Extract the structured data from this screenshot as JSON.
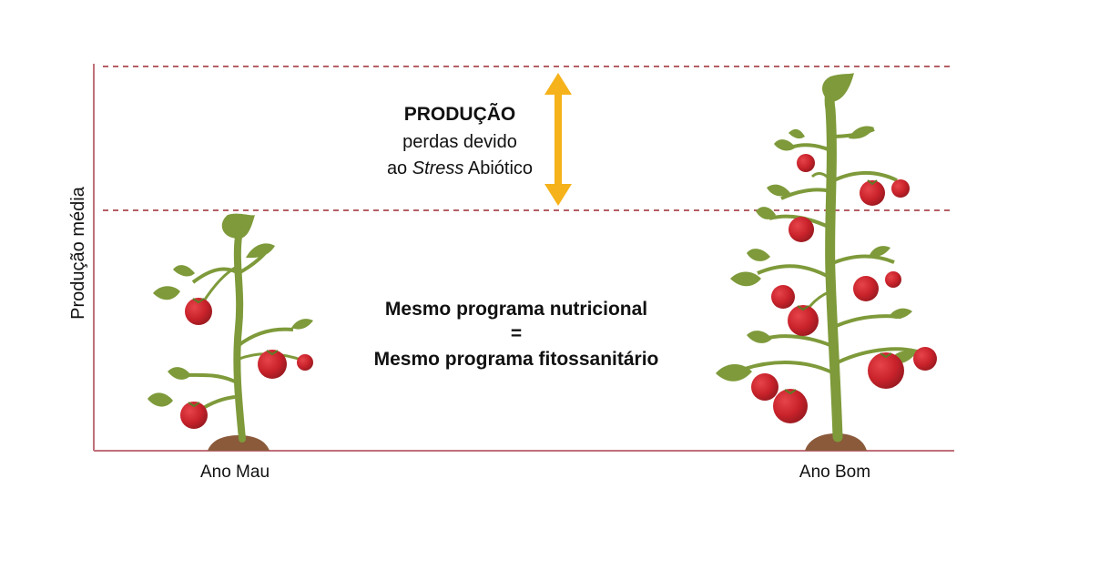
{
  "axis": {
    "ylabel": "Produção média",
    "categories": [
      "Ano Mau",
      "Ano Bom"
    ]
  },
  "gap_annotation": {
    "title": "PRODUÇÃO",
    "line2": "perdas devido",
    "line3_prefix": "ao ",
    "line3_italic": "Stress",
    "line3_suffix": " Abiótico"
  },
  "center_note": {
    "line1": "Mesmo programa nutricional",
    "line2": "=",
    "line3": "Mesmo programa fitossanitário"
  },
  "colors": {
    "axis": "#c0707a",
    "dashed": "#9b2b33",
    "arrow": "#f5b21a",
    "stem": "#7e9a3a",
    "leaf": "#7e9a3a",
    "tomato": "#c9222b",
    "soil": "#8a5a3b"
  },
  "icons": [
    "small-tomato-plant-icon",
    "large-tomato-plant-icon",
    "double-arrow-icon"
  ]
}
